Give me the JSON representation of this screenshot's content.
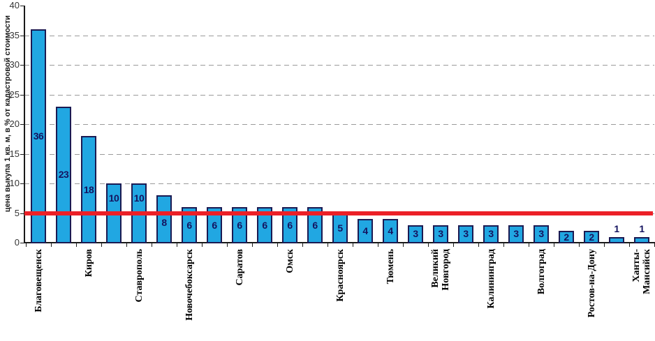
{
  "chart_data": {
    "type": "bar",
    "title": "",
    "xlabel": "",
    "ylabel": "цена выкупа 1 кв. м, в % от кадастровой стоимости",
    "ylim": [
      0,
      40
    ],
    "yticks": [
      0,
      5,
      10,
      15,
      20,
      25,
      30,
      35,
      40
    ],
    "grid": {
      "horizontal": "dashed",
      "vertical": "none"
    },
    "legend": "none",
    "reference_line": {
      "value": 5
    },
    "categories": [
      "Благовещенск",
      "",
      "Киров",
      "",
      "Ставрополь",
      "",
      "Новочебоксарск",
      "",
      "Саратов",
      "",
      "Омск",
      "",
      "Красноярск",
      "",
      "Тюмень",
      "",
      "Великий\nНовгород",
      "",
      "Калининград",
      "",
      "Волгоград",
      "",
      "Ростов-на-Дону",
      "",
      "Ханты-\nМансийск"
    ],
    "values": [
      36,
      23,
      18,
      10,
      10,
      8,
      6,
      6,
      6,
      6,
      6,
      6,
      5,
      4,
      4,
      3,
      3,
      3,
      3,
      3,
      3,
      2,
      2,
      1,
      1
    ],
    "colors": {
      "bar_fill": "#21a7e2",
      "bar_border": "#1b1a52",
      "value_label": "#14135f",
      "reference_line": "#ec2027",
      "grid": "#9a9a9a",
      "axis": "#1a1a1a"
    }
  }
}
